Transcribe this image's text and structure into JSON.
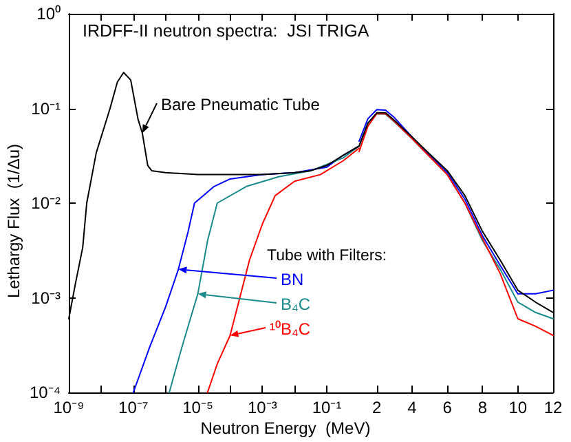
{
  "chart_data": [
    {
      "type": "line",
      "title": "IRDFF-II neutron spectra:  JSI TRIGA",
      "xlabel": "Neutron Energy  (MeV)",
      "ylabel": "Lethargy Flux  (1/Δu)",
      "annotations": [
        "Tube with Filters:"
      ],
      "log": "xy",
      "grid": false,
      "legend": "bottom right",
      "marker": "none",
      "line_style": "solid",
      "xlim": [
        1e-09,
        1
      ],
      "ylim": [
        0.0001,
        1
      ],
      "xticks": [
        {
          "value": 1e-09,
          "label": "10⁻⁹"
        },
        {
          "value": 1e-08,
          "label": null
        },
        {
          "value": 1e-07,
          "label": "10⁻⁷"
        },
        {
          "value": 1e-06,
          "label": null
        },
        {
          "value": 1e-05,
          "label": "10⁻⁵"
        },
        {
          "value": 0.0001,
          "label": null
        },
        {
          "value": 0.001,
          "label": "10⁻³"
        },
        {
          "value": 0.01,
          "label": null
        },
        {
          "value": 0.1,
          "label": "10⁻¹"
        }
      ],
      "yticks": [
        {
          "value": 0.0001,
          "label": "10⁻⁴"
        },
        {
          "value": 0.001,
          "label": "10⁻³"
        },
        {
          "value": 0.01,
          "label": "10⁻²"
        },
        {
          "value": 0.1,
          "label": "10⁻¹"
        },
        {
          "value": 1,
          "label": "10⁰"
        }
      ],
      "series": [
        {
          "name": "BN",
          "color": "#0000ff",
          "x": [
            1e-07,
            3.2e-07,
            1e-06,
            2.5e-06,
            5e-06,
            7.9e-06,
            3.2e-05,
            0.0001,
            0.001,
            0.01,
            0.1,
            0.32,
            1
          ],
          "values": [
            0.0001,
            0.0003,
            0.0008,
            0.002,
            0.005,
            0.01,
            0.015,
            0.018,
            0.02,
            0.021,
            0.024,
            0.032,
            0.04
          ]
        },
        {
          "name": "B₄C",
          "color": "#1a8a8a",
          "x": [
            1.3e-06,
            3.2e-06,
            1e-05,
            2e-05,
            4e-05,
            0.00032,
            0.0032,
            0.032,
            0.32,
            1
          ],
          "values": [
            0.0001,
            0.0003,
            0.0011,
            0.004,
            0.01,
            0.015,
            0.019,
            0.022,
            0.03,
            0.04
          ]
        },
        {
          "name": "¹⁰B₄C",
          "color": "#ff0000",
          "x": [
            2e-05,
            4e-05,
            0.0001,
            0.0002,
            0.0004,
            0.001,
            0.0025,
            0.01,
            0.063,
            0.32,
            1
          ],
          "values": [
            0.0001,
            0.0002,
            0.0004,
            0.001,
            0.0025,
            0.006,
            0.012,
            0.017,
            0.02,
            0.028,
            0.038
          ]
        },
        {
          "name": "Bare Pneumatic Tube",
          "color": "#000000",
          "x": [
            1e-09,
            1.6e-09,
            2.7e-09,
            3.6e-09,
            7.1e-09,
            1.9e-08,
            3.2e-08,
            5e-08,
            8.3e-08,
            1.4e-07,
            1.9e-07,
            2.8e-07,
            3.7e-07,
            1e-06,
            1e-05,
            0.0001,
            0.001,
            0.01,
            0.032,
            0.1,
            0.32,
            1
          ],
          "values": [
            0.0006,
            0.0014,
            0.0034,
            0.01,
            0.034,
            0.1,
            0.19,
            0.24,
            0.2,
            0.077,
            0.055,
            0.025,
            0.022,
            0.021,
            0.02,
            0.02,
            0.02,
            0.021,
            0.022,
            0.025,
            0.032,
            0.04
          ]
        }
      ]
    },
    {
      "type": "line",
      "log": "y",
      "grid": false,
      "legend": false,
      "marker": "none",
      "line_style": "solid",
      "tick_labels": "x",
      "xlim": [
        1,
        12
      ],
      "ylim": [
        0.0001,
        1
      ],
      "xticks": [
        2,
        4,
        6,
        8,
        10,
        12
      ],
      "yticks": [
        {
          "value": 0.0001,
          "label": null
        },
        {
          "value": 0.001,
          "label": null
        },
        {
          "value": 0.01,
          "label": null
        },
        {
          "value": 0.1,
          "label": null
        },
        {
          "value": 1,
          "label": null
        }
      ],
      "series": [
        {
          "color": "#0000ff",
          "x": [
            1,
            1.5,
            2,
            2.5,
            3,
            4,
            5,
            6,
            7,
            8,
            9,
            10,
            11,
            12
          ],
          "values": [
            0.045,
            0.078,
            0.097,
            0.096,
            0.08,
            0.05,
            0.032,
            0.021,
            0.011,
            0.0045,
            0.0022,
            0.0011,
            0.0011,
            0.0012
          ]
        },
        {
          "color": "#1a8a8a",
          "x": [
            1,
            1.5,
            2,
            2.5,
            3,
            4,
            5,
            6,
            7,
            8,
            9,
            10,
            11,
            12
          ],
          "values": [
            0.04,
            0.07,
            0.088,
            0.087,
            0.072,
            0.048,
            0.031,
            0.02,
            0.01,
            0.004,
            0.002,
            0.0009,
            0.0007,
            0.0006
          ]
        },
        {
          "color": "#ff0000",
          "x": [
            1,
            1.5,
            2,
            2.5,
            3,
            4,
            5,
            6,
            7,
            8,
            9,
            10,
            11,
            12
          ],
          "values": [
            0.035,
            0.065,
            0.088,
            0.088,
            0.073,
            0.048,
            0.031,
            0.02,
            0.01,
            0.0042,
            0.0018,
            0.0006,
            0.0005,
            0.0004
          ]
        },
        {
          "color": "#000000",
          "x": [
            1,
            1.5,
            2,
            2.5,
            3,
            4,
            5,
            6,
            7,
            8,
            9,
            10,
            11,
            12
          ],
          "values": [
            0.04,
            0.07,
            0.09,
            0.09,
            0.075,
            0.05,
            0.033,
            0.022,
            0.012,
            0.005,
            0.0025,
            0.0012,
            0.0009,
            0.0007
          ]
        }
      ]
    }
  ]
}
